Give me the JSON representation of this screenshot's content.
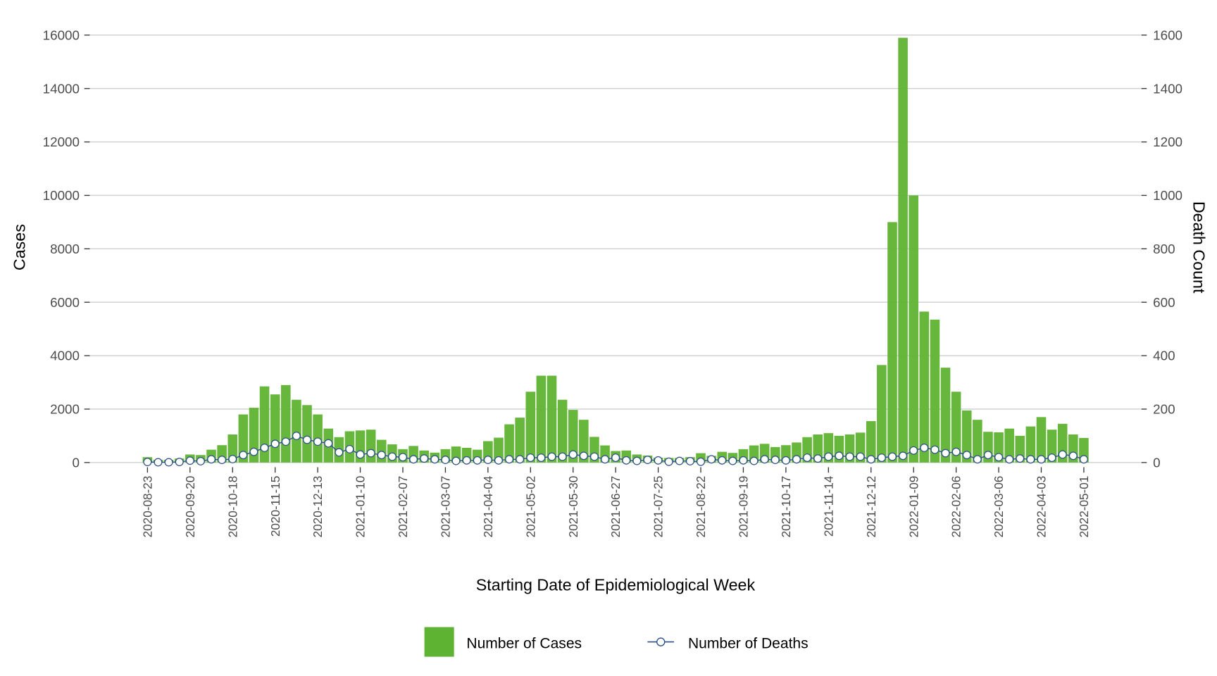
{
  "chart_data": {
    "type": "bar+line",
    "xlabel": "Starting Date of Epidemiological Week",
    "ylabel": "Cases",
    "y2label": "Death Count",
    "ylim": [
      0,
      16000
    ],
    "y2lim": [
      0,
      1600
    ],
    "y_ticks": [
      "0",
      "2000",
      "4000",
      "6000",
      "8000",
      "10000",
      "12000",
      "14000",
      "16000"
    ],
    "y2_ticks": [
      "0",
      "200",
      "400",
      "600",
      "800",
      "1000",
      "1200",
      "1400",
      "1600"
    ],
    "grid": true,
    "legend_position": "bottom",
    "x_start": "2020-08-23",
    "interval_days": 7,
    "x_tick_labels": [
      "2020-08-23",
      "2020-09-20",
      "2020-10-18",
      "2020-11-15",
      "2020-12-13",
      "2021-01-10",
      "2021-02-07",
      "2021-03-07",
      "2021-04-04",
      "2021-05-02",
      "2021-05-30",
      "2021-06-27",
      "2021-07-25",
      "2021-08-22",
      "2021-09-19",
      "2021-10-17",
      "2021-11-14",
      "2021-12-12",
      "2022-01-09",
      "2022-02-06",
      "2022-03-06",
      "2022-04-03",
      "2022-05-01"
    ],
    "series": [
      {
        "name": "Number of Cases",
        "type": "bar",
        "axis": "left",
        "color": "#5fb332",
        "values": [
          200,
          100,
          100,
          150,
          300,
          280,
          480,
          650,
          1050,
          1800,
          2050,
          2850,
          2550,
          2900,
          2350,
          2150,
          1800,
          1270,
          950,
          1170,
          1200,
          1230,
          850,
          680,
          500,
          620,
          450,
          370,
          500,
          600,
          550,
          480,
          800,
          930,
          1430,
          1680,
          2650,
          3250,
          3250,
          2350,
          1970,
          1600,
          960,
          640,
          430,
          450,
          300,
          260,
          180,
          170,
          170,
          200,
          350,
          250,
          400,
          360,
          500,
          640,
          700,
          580,
          650,
          750,
          950,
          1050,
          1100,
          1000,
          1050,
          1120,
          1550,
          3650,
          9000,
          15900,
          10000,
          5650,
          5350,
          3550,
          2650,
          1950,
          1600,
          1150,
          1130,
          1270,
          1000,
          1350,
          1700,
          1230,
          1450,
          1050,
          920
        ]
      },
      {
        "name": "Number of Deaths",
        "type": "line",
        "axis": "right",
        "color": "#2c4f8a",
        "values": [
          2,
          1,
          1,
          2,
          7,
          5,
          12,
          10,
          13,
          28,
          40,
          55,
          70,
          78,
          100,
          85,
          78,
          72,
          38,
          50,
          30,
          35,
          28,
          22,
          20,
          12,
          15,
          12,
          10,
          6,
          8,
          8,
          10,
          8,
          12,
          12,
          18,
          18,
          22,
          22,
          30,
          25,
          22,
          12,
          18,
          8,
          6,
          10,
          8,
          3,
          6,
          5,
          3,
          12,
          8,
          6,
          8,
          6,
          12,
          10,
          8,
          12,
          18,
          15,
          22,
          25,
          22,
          22,
          12,
          18,
          22,
          25,
          45,
          55,
          48,
          35,
          40,
          28,
          12,
          28,
          20,
          12,
          15,
          12,
          12,
          18,
          30,
          25,
          12
        ]
      }
    ]
  }
}
